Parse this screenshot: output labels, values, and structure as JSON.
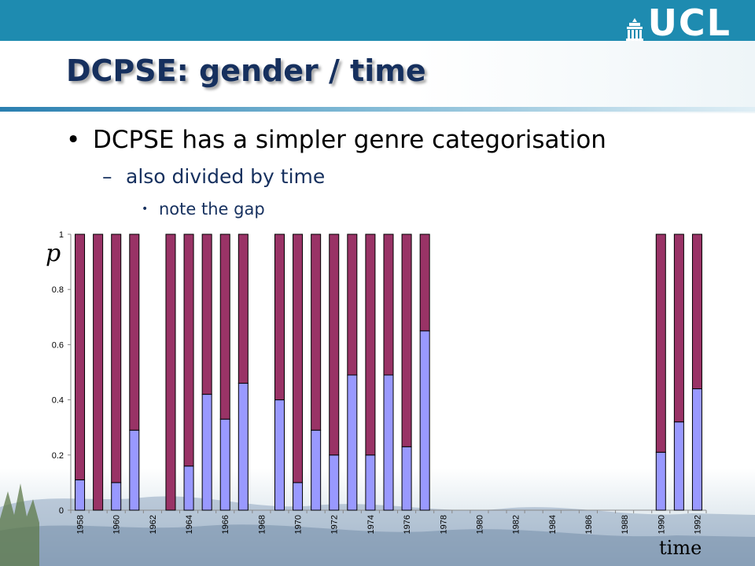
{
  "slide": {
    "logo_text": "UCL",
    "title": "DCPSE: gender / time",
    "bullet1": "DCPSE has a simpler genre categorisation",
    "bullet2": "also divided by time",
    "bullet3": "note the gap",
    "bullet_dot": "•",
    "bullet_dash": "–"
  },
  "colors": {
    "band": "#1e8bb0",
    "title": "#16305e",
    "female": "#9999ff",
    "male": "#993366"
  },
  "chart_data": {
    "type": "bar",
    "stacked": true,
    "ylabel": "p",
    "xlabel": "time",
    "ylim": [
      0,
      1
    ],
    "yticks": [
      "0",
      "0.2",
      "0.4",
      "0.6",
      "0.8",
      "1"
    ],
    "x_start": 1958,
    "x_end": 1992,
    "xtick_labels": [
      "1958",
      "1960",
      "1962",
      "1964",
      "1966",
      "1968",
      "1970",
      "1972",
      "1974",
      "1976",
      "1978",
      "1980",
      "1982",
      "1984",
      "1986",
      "1988",
      "1990",
      "1992"
    ],
    "years": [
      1958,
      1959,
      1960,
      1961,
      1962,
      1963,
      1964,
      1965,
      1966,
      1967,
      1968,
      1969,
      1970,
      1971,
      1972,
      1973,
      1974,
      1975,
      1976,
      1977,
      1978,
      1979,
      1980,
      1981,
      1982,
      1983,
      1984,
      1985,
      1986,
      1987,
      1988,
      1989,
      1990,
      1991,
      1992
    ],
    "series": [
      {
        "color": "#9999ff",
        "values": [
          0.11,
          0.0,
          0.1,
          0.29,
          null,
          0.0,
          0.16,
          0.42,
          0.33,
          0.46,
          null,
          0.4,
          0.1,
          0.29,
          0.2,
          0.49,
          0.2,
          0.49,
          0.23,
          0.65,
          null,
          null,
          null,
          null,
          null,
          null,
          null,
          null,
          null,
          null,
          null,
          null,
          0.21,
          0.32,
          0.44
        ]
      },
      {
        "color": "#993366",
        "values": [
          0.89,
          1.0,
          0.9,
          0.71,
          null,
          1.0,
          0.84,
          0.58,
          0.67,
          0.54,
          null,
          0.6,
          0.9,
          0.71,
          0.8,
          0.51,
          0.8,
          0.51,
          0.77,
          0.35,
          null,
          null,
          null,
          null,
          null,
          null,
          null,
          null,
          null,
          null,
          null,
          null,
          0.79,
          0.68,
          0.56
        ]
      }
    ]
  }
}
